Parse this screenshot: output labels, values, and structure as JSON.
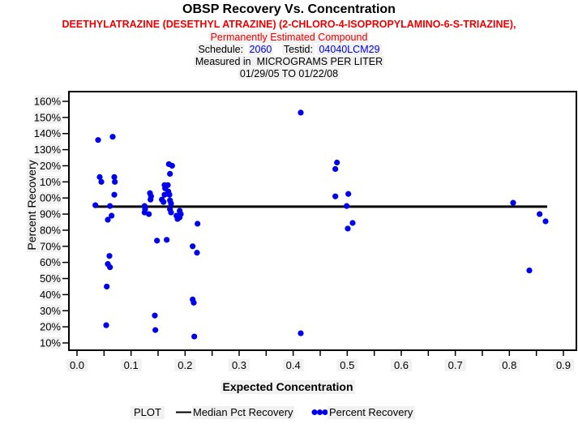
{
  "header": {
    "title": "OBSP Recovery Vs. Concentration",
    "compound_line": "DEETHYLATRAZINE (DESETHYL ATRAZINE) (2-CHLORO-4-ISOPROPYLAMINO-6-S-TRIAZINE),",
    "status_line": "Permanently Estimated Compound",
    "schedule_label": "Schedule:",
    "schedule_value": "2060",
    "testid_label": "Testid:",
    "testid_value": "04040LCM29",
    "measured_line": "Measured in  MICROGRAMS PER LITER",
    "date_range": "01/29/05 TO 01/22/08"
  },
  "colors": {
    "title_text": "#000000",
    "compound_red": "#ee0000",
    "value_blue": "#0000dd",
    "point_blue": "#0000ee",
    "median_black": "#000000",
    "label_bg": "#f1f1f1"
  },
  "chart_data": {
    "type": "scatter",
    "title": "OBSP Recovery Vs. Concentration",
    "xlabel": "Expected Concentration",
    "ylabel": "Percent Recovery",
    "xlim": [
      0.0,
      0.9
    ],
    "x_major_tick_step": 0.1,
    "x_minor_tick_step": 0.05,
    "x_tick_labels": [
      "0.0",
      "0.1",
      "0.2",
      "0.3",
      "0.4",
      "0.5",
      "0.6",
      "0.7",
      "0.8",
      "0.9"
    ],
    "ylim_percent": [
      10,
      160
    ],
    "y_tick_step_percent": 10,
    "y_tick_labels": [
      "160%",
      "150%",
      "140%",
      "130%",
      "120%",
      "110%",
      "100%",
      "90%",
      "80%",
      "70%",
      "60%",
      "50%",
      "40%",
      "30%",
      "20%",
      "10%"
    ],
    "grid": false,
    "legend": {
      "title": "PLOT",
      "position": "bottom",
      "entries": [
        {
          "type": "line",
          "label": "Median Pct Recovery"
        },
        {
          "type": "dots",
          "label": "Percent Recovery"
        }
      ]
    },
    "median_line": {
      "y_percent": 94.6,
      "x_start": 0.032,
      "x_end": 0.87
    },
    "points": [
      [
        0.039,
        136
      ],
      [
        0.066,
        138
      ],
      [
        0.042,
        113
      ],
      [
        0.045,
        110
      ],
      [
        0.069,
        113
      ],
      [
        0.07,
        110
      ],
      [
        0.069,
        102
      ],
      [
        0.034,
        95.5
      ],
      [
        0.061,
        95
      ],
      [
        0.064,
        89
      ],
      [
        0.057,
        86.5
      ],
      [
        0.06,
        64
      ],
      [
        0.057,
        59
      ],
      [
        0.061,
        57
      ],
      [
        0.055,
        45
      ],
      [
        0.054,
        21
      ],
      [
        0.125,
        95
      ],
      [
        0.126,
        93
      ],
      [
        0.125,
        91
      ],
      [
        0.135,
        103
      ],
      [
        0.137,
        101
      ],
      [
        0.136,
        99
      ],
      [
        0.133,
        90
      ],
      [
        0.17,
        121
      ],
      [
        0.176,
        120
      ],
      [
        0.172,
        115
      ],
      [
        0.162,
        108
      ],
      [
        0.168,
        108
      ],
      [
        0.163,
        106
      ],
      [
        0.169,
        104
      ],
      [
        0.162,
        102
      ],
      [
        0.171,
        102
      ],
      [
        0.157,
        99
      ],
      [
        0.16,
        97.5
      ],
      [
        0.172,
        98.5
      ],
      [
        0.174,
        96.5
      ],
      [
        0.172,
        93
      ],
      [
        0.174,
        91
      ],
      [
        0.184,
        89
      ],
      [
        0.186,
        87
      ],
      [
        0.148,
        73.5
      ],
      [
        0.166,
        74
      ],
      [
        0.144,
        27
      ],
      [
        0.145,
        18
      ],
      [
        0.19,
        92
      ],
      [
        0.192,
        90
      ],
      [
        0.19,
        88
      ],
      [
        0.223,
        84
      ],
      [
        0.214,
        70
      ],
      [
        0.222,
        66
      ],
      [
        0.214,
        37
      ],
      [
        0.216,
        35
      ],
      [
        0.217,
        14
      ],
      [
        0.414,
        153
      ],
      [
        0.414,
        16
      ],
      [
        0.481,
        122
      ],
      [
        0.478,
        118
      ],
      [
        0.478,
        101
      ],
      [
        0.502,
        102.5
      ],
      [
        0.499,
        95
      ],
      [
        0.51,
        84.5
      ],
      [
        0.501,
        81
      ],
      [
        0.807,
        97
      ],
      [
        0.856,
        90
      ],
      [
        0.867,
        85.5
      ],
      [
        0.837,
        55
      ]
    ]
  }
}
